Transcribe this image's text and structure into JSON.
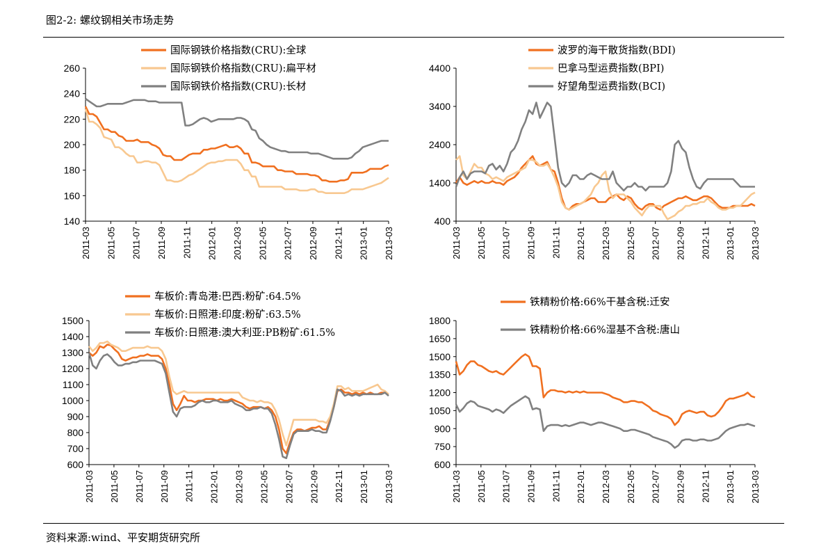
{
  "figure": {
    "title": "图2-2: 螺纹钢相关市场走势",
    "source": "资料来源:wind、平安期货研究所"
  },
  "chart_data": [
    {
      "type": "line",
      "xlabels": [
        "2011-03",
        "2011-05",
        "2011-07",
        "2011-09",
        "2011-11",
        "2012-01",
        "2012-03",
        "2012-05",
        "2012-07",
        "2012-09",
        "2012-11",
        "2013-01",
        "2013-03"
      ],
      "ylim": [
        140,
        260
      ],
      "yticks": [
        140,
        160,
        180,
        200,
        220,
        240,
        260
      ],
      "grid": false,
      "legend_position": "top",
      "series": [
        {
          "name": "国际钢铁价格指数(CRU):全球",
          "color": "#f07020",
          "values": [
            230,
            224,
            224,
            222,
            217,
            212,
            212,
            210,
            210,
            207,
            206,
            203,
            203,
            203,
            204,
            202,
            202,
            202,
            200,
            199,
            197,
            192,
            191,
            191,
            188,
            188,
            188,
            190,
            192,
            193,
            193,
            193,
            196,
            196,
            197,
            197,
            198,
            199,
            200,
            198,
            198,
            199,
            197,
            193,
            193,
            186,
            186,
            185,
            183,
            183,
            183,
            183,
            180,
            180,
            179,
            179,
            179,
            177,
            177,
            177,
            177,
            176,
            176,
            175,
            172,
            172,
            171,
            171,
            171,
            172,
            172,
            173,
            178,
            178,
            178,
            178,
            179,
            181,
            181,
            181,
            181,
            183,
            184
          ]
        },
        {
          "name": "国际钢铁价格指数(CRU):扁平材",
          "color": "#f8c890",
          "values": [
            228,
            218,
            218,
            216,
            213,
            206,
            205,
            204,
            198,
            198,
            196,
            193,
            191,
            191,
            186,
            186,
            187,
            187,
            186,
            186,
            184,
            178,
            172,
            172,
            171,
            171,
            172,
            174,
            176,
            177,
            179,
            181,
            183,
            185,
            186,
            186,
            187,
            187,
            188,
            188,
            188,
            188,
            185,
            180,
            180,
            175,
            175,
            167,
            167,
            167,
            167,
            167,
            167,
            167,
            165,
            165,
            165,
            165,
            164,
            164,
            164,
            165,
            165,
            163,
            163,
            162,
            162,
            162,
            162,
            162,
            162,
            163,
            165,
            165,
            165,
            165,
            166,
            167,
            168,
            169,
            170,
            172,
            174
          ]
        },
        {
          "name": "国际钢铁价格指数(CRU):长材",
          "color": "#808080",
          "values": [
            236,
            234,
            232,
            230,
            230,
            231,
            232,
            232,
            232,
            232,
            232,
            233,
            234,
            235,
            235,
            235,
            235,
            234,
            234,
            234,
            233,
            233,
            233,
            233,
            233,
            233,
            233,
            215,
            215,
            216,
            218,
            220,
            221,
            220,
            218,
            219,
            220,
            220,
            220,
            220,
            220,
            221,
            221,
            220,
            218,
            212,
            211,
            205,
            203,
            200,
            198,
            197,
            196,
            195,
            195,
            194,
            194,
            194,
            194,
            194,
            194,
            193,
            193,
            193,
            192,
            191,
            190,
            189,
            189,
            189,
            189,
            189,
            190,
            193,
            195,
            198,
            199,
            200,
            201,
            202,
            203,
            203,
            203
          ]
        }
      ]
    },
    {
      "type": "line",
      "xlabels": [
        "2011-03",
        "2011-05",
        "2011-07",
        "2011-09",
        "2011-11",
        "2012-01",
        "2012-03",
        "2012-05",
        "2012-07",
        "2012-09",
        "2012-11",
        "2013-01",
        "2013-03"
      ],
      "ylim": [
        400,
        4400
      ],
      "yticks": [
        400,
        1400,
        2400,
        3400,
        4400
      ],
      "grid": false,
      "legend_position": "top-right",
      "series": [
        {
          "name": "波罗的海干散货指数(BDI)",
          "color": "#f07020",
          "values": [
            1400,
            1550,
            1400,
            1350,
            1400,
            1450,
            1400,
            1450,
            1400,
            1400,
            1450,
            1400,
            1400,
            1350,
            1450,
            1500,
            1550,
            1650,
            1800,
            1900,
            2000,
            2100,
            1900,
            1850,
            1900,
            1950,
            1750,
            1700,
            1400,
            1000,
            750,
            700,
            800,
            850,
            850,
            900,
            950,
            1000,
            1000,
            900,
            900,
            900,
            1000,
            1050,
            1100,
            1000,
            950,
            1050,
            1000,
            850,
            750,
            700,
            800,
            850,
            850,
            750,
            700,
            800,
            850,
            900,
            950,
            1000,
            1000,
            1050,
            1000,
            950,
            950,
            1000,
            1050,
            1050,
            1000,
            900,
            800,
            750,
            750,
            750,
            800,
            800,
            800,
            800,
            800,
            850,
            800
          ]
        },
        {
          "name": "巴拿马型运费指数(BPI)",
          "color": "#f8c890",
          "values": [
            2000,
            2100,
            1600,
            1500,
            1700,
            1900,
            1800,
            1800,
            1650,
            1600,
            1500,
            1550,
            1500,
            1450,
            1550,
            1600,
            1650,
            1700,
            1750,
            1800,
            2000,
            2000,
            1950,
            1850,
            1850,
            1900,
            1750,
            1550,
            1300,
            900,
            750,
            700,
            750,
            800,
            850,
            900,
            1000,
            1100,
            1300,
            1400,
            1600,
            1700,
            1200,
            1000,
            1100,
            1100,
            1100,
            1000,
            900,
            750,
            650,
            550,
            700,
            800,
            800,
            800,
            800,
            600,
            450,
            500,
            550,
            650,
            700,
            800,
            800,
            850,
            850,
            900,
            900,
            1000,
            900,
            850,
            750,
            700,
            700,
            750,
            750,
            800,
            800,
            900,
            1000,
            1100,
            1150
          ]
        },
        {
          "name": "好望角型运费指数(BCI)",
          "color": "#808080",
          "values": [
            1300,
            1550,
            1700,
            1500,
            1650,
            1700,
            1700,
            1700,
            1650,
            1850,
            1900,
            1750,
            1850,
            1700,
            1900,
            2200,
            2300,
            2500,
            2800,
            3000,
            3300,
            3200,
            3500,
            3100,
            3300,
            3500,
            3400,
            2600,
            1800,
            1400,
            1300,
            1400,
            1600,
            1600,
            1500,
            1500,
            1600,
            1650,
            1600,
            1550,
            1500,
            1500,
            1500,
            1700,
            1400,
            1300,
            1200,
            1300,
            1300,
            1400,
            1300,
            1300,
            1200,
            1300,
            1300,
            1300,
            1300,
            1300,
            1400,
            1700,
            2400,
            2500,
            2300,
            2200,
            1800,
            1500,
            1300,
            1250,
            1400,
            1500,
            1500,
            1500,
            1500,
            1500,
            1500,
            1500,
            1500,
            1400,
            1300,
            1300,
            1300,
            1300,
            1300
          ]
        }
      ]
    },
    {
      "type": "line",
      "xlabels": [
        "2011-03",
        "2011-05",
        "2011-07",
        "2011-09",
        "2011-11",
        "2012-01",
        "2012-03",
        "2012-05",
        "2012-07",
        "2012-09",
        "2012-11",
        "2013-01",
        "2013-03"
      ],
      "ylim": [
        600,
        1500
      ],
      "yticks": [
        600,
        700,
        800,
        900,
        1000,
        1100,
        1200,
        1300,
        1400,
        1500
      ],
      "grid": false,
      "legend_position": "top",
      "series": [
        {
          "name": "车板价:青岛港:巴西:粉矿:64.5%",
          "color": "#f07020",
          "values": [
            1300,
            1280,
            1300,
            1340,
            1330,
            1350,
            1345,
            1320,
            1300,
            1260,
            1250,
            1260,
            1270,
            1270,
            1280,
            1280,
            1290,
            1280,
            1280,
            1280,
            1260,
            1200,
            1100,
            980,
            940,
            980,
            1030,
            1000,
            1000,
            990,
            1000,
            1000,
            1010,
            1010,
            1010,
            1000,
            1010,
            1000,
            1000,
            1010,
            1000,
            990,
            980,
            960,
            950,
            960,
            960,
            960,
            950,
            960,
            940,
            900,
            820,
            700,
            670,
            740,
            800,
            820,
            820,
            810,
            820,
            830,
            830,
            840,
            820,
            820,
            880,
            960,
            1060,
            1070,
            1050,
            1050,
            1040,
            1050,
            1040,
            1050,
            1040,
            1050,
            1040,
            1040,
            1050,
            1050,
            1040
          ]
        },
        {
          "name": "车板价:日照港:印度:粉矿:63.5%",
          "color": "#f8c890",
          "values": [
            1340,
            1310,
            1330,
            1360,
            1360,
            1370,
            1350,
            1340,
            1330,
            1310,
            1310,
            1320,
            1330,
            1330,
            1330,
            1330,
            1340,
            1330,
            1330,
            1330,
            1310,
            1260,
            1150,
            1060,
            1040,
            1050,
            1060,
            1050,
            1050,
            1050,
            1050,
            1050,
            1050,
            1050,
            1050,
            1050,
            1050,
            1050,
            1050,
            1050,
            1050,
            1050,
            1020,
            1010,
            1000,
            1000,
            990,
            1000,
            990,
            990,
            980,
            940,
            880,
            790,
            720,
            800,
            880,
            880,
            880,
            880,
            880,
            880,
            880,
            870,
            870,
            860,
            900,
            980,
            1090,
            1090,
            1070,
            1080,
            1060,
            1060,
            1060,
            1060,
            1070,
            1080,
            1090,
            1100,
            1070,
            1060,
            1040
          ]
        },
        {
          "name": "车板价:日照港:澳大利亚:PB粉矿:61.5%",
          "color": "#808080",
          "values": [
            1300,
            1220,
            1200,
            1250,
            1280,
            1290,
            1270,
            1240,
            1220,
            1220,
            1230,
            1230,
            1240,
            1240,
            1250,
            1250,
            1250,
            1250,
            1250,
            1240,
            1230,
            1170,
            1050,
            930,
            900,
            950,
            960,
            960,
            960,
            970,
            990,
            1000,
            990,
            990,
            1000,
            1000,
            990,
            990,
            990,
            1000,
            980,
            970,
            960,
            940,
            940,
            950,
            950,
            960,
            950,
            950,
            920,
            850,
            760,
            650,
            640,
            720,
            790,
            810,
            810,
            810,
            810,
            820,
            810,
            810,
            800,
            800,
            870,
            960,
            1070,
            1060,
            1030,
            1040,
            1030,
            1040,
            1030,
            1040,
            1040,
            1040,
            1040,
            1040,
            1040,
            1050,
            1030
          ]
        }
      ]
    },
    {
      "type": "line",
      "xlabels": [
        "2011-03",
        "2011-05",
        "2011-07",
        "2011-09",
        "2011-11",
        "2012-01",
        "2012-03",
        "2012-05",
        "2012-07",
        "2012-09",
        "2012-11",
        "2013-01",
        "2013-03"
      ],
      "ylim": [
        600,
        1800
      ],
      "yticks": [
        600,
        750,
        900,
        1050,
        1200,
        1350,
        1500,
        1650,
        1800
      ],
      "grid": false,
      "legend_position": "top",
      "series": [
        {
          "name": "铁精粉价格:66%干基含税:迁安",
          "color": "#f07020",
          "values": [
            1460,
            1350,
            1380,
            1430,
            1460,
            1460,
            1430,
            1420,
            1400,
            1380,
            1370,
            1380,
            1360,
            1350,
            1380,
            1410,
            1440,
            1470,
            1500,
            1520,
            1500,
            1420,
            1420,
            1400,
            1160,
            1200,
            1220,
            1220,
            1210,
            1210,
            1200,
            1210,
            1200,
            1210,
            1200,
            1210,
            1200,
            1200,
            1200,
            1200,
            1200,
            1190,
            1180,
            1160,
            1150,
            1140,
            1120,
            1120,
            1130,
            1130,
            1120,
            1120,
            1100,
            1080,
            1050,
            1040,
            1020,
            1010,
            1000,
            980,
            930,
            960,
            1020,
            1040,
            1050,
            1040,
            1030,
            1040,
            1040,
            1010,
            1000,
            1010,
            1040,
            1080,
            1130,
            1150,
            1150,
            1160,
            1170,
            1180,
            1200,
            1170,
            1160
          ]
        },
        {
          "name": "铁精粉价格:66%湿基不含税:唐山",
          "color": "#808080",
          "values": [
            1100,
            1040,
            1070,
            1110,
            1130,
            1120,
            1090,
            1080,
            1070,
            1060,
            1040,
            1060,
            1050,
            1030,
            1060,
            1090,
            1110,
            1130,
            1150,
            1170,
            1150,
            1060,
            1070,
            1060,
            880,
            920,
            930,
            930,
            930,
            920,
            930,
            920,
            930,
            940,
            950,
            950,
            940,
            930,
            940,
            950,
            950,
            940,
            930,
            920,
            910,
            900,
            880,
            880,
            890,
            890,
            880,
            870,
            860,
            850,
            830,
            820,
            810,
            800,
            790,
            770,
            740,
            760,
            800,
            810,
            810,
            800,
            800,
            810,
            810,
            800,
            800,
            810,
            820,
            850,
            880,
            900,
            910,
            920,
            930,
            930,
            940,
            930,
            920
          ]
        }
      ]
    }
  ]
}
